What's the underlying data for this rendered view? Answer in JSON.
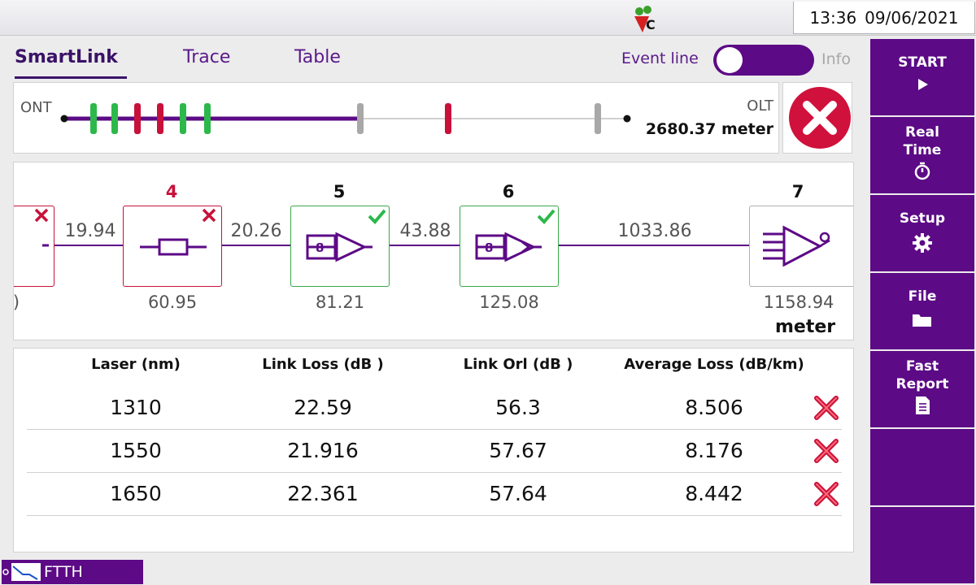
{
  "status_bar": {
    "time": "13:36",
    "date": "09/06/2021",
    "logo": "vc-logo-icon"
  },
  "tabs": [
    {
      "label": "SmartLink",
      "active": true
    },
    {
      "label": "Trace",
      "active": false
    },
    {
      "label": "Table",
      "active": false
    }
  ],
  "event_line": {
    "label": "Event line",
    "toggle_state": "off",
    "info_label": "Info"
  },
  "link": {
    "start_label": "ONT",
    "end_label": "OLT",
    "length": "2680.37 meter",
    "status": "fail",
    "markers": [
      {
        "color": "#2cb84a"
      },
      {
        "color": "#2cb84a"
      },
      {
        "color": "#c8113a"
      },
      {
        "color": "#c8113a"
      },
      {
        "color": "#2cb84a"
      },
      {
        "color": "#2cb84a"
      },
      {
        "color": "#a8a8a8"
      },
      {
        "color": "#c8113a"
      },
      {
        "color": "#a8a8a8"
      }
    ]
  },
  "diagram": {
    "unit": "meter",
    "partial_first": {
      "position": ")",
      "status": "fail",
      "icon": "partial-event-icon"
    },
    "spans": [
      "19.94",
      "20.26",
      "43.88",
      "1033.86"
    ],
    "events": [
      {
        "number": "4",
        "position": "60.95",
        "status": "fail",
        "icon": "connector-icon"
      },
      {
        "number": "5",
        "position": "81.21",
        "status": "pass",
        "icon": "splitter-1x8-icon"
      },
      {
        "number": "6",
        "position": "125.08",
        "status": "pass",
        "icon": "splitter-1x8-icon"
      },
      {
        "number": "7",
        "position": "1158.94",
        "status": "none",
        "icon": "olt-end-icon"
      }
    ]
  },
  "results": {
    "headers": [
      "Laser (nm)",
      "Link Loss (dB )",
      "Link Orl (dB )",
      "Average Loss (dB/km)"
    ],
    "rows": [
      {
        "laser": "1310",
        "loss": "22.59",
        "orl": "56.3",
        "avg": "8.506",
        "status": "fail"
      },
      {
        "laser": "1550",
        "loss": "21.916",
        "orl": "57.67",
        "avg": "8.176",
        "status": "fail"
      },
      {
        "laser": "1650",
        "loss": "22.361",
        "orl": "57.64",
        "avg": "8.442",
        "status": "fail"
      }
    ]
  },
  "sidebar": {
    "start": "START",
    "real_time": [
      "Real",
      "Time"
    ],
    "setup": "Setup",
    "file": "File",
    "fast_report": [
      "Fast",
      "Report"
    ]
  },
  "bottom": {
    "mode": "FTTH"
  },
  "colors": {
    "brand": "#5c0a86",
    "pass": "#2cb84a",
    "fail": "#c8113a",
    "neutral": "#a8a8a8"
  }
}
